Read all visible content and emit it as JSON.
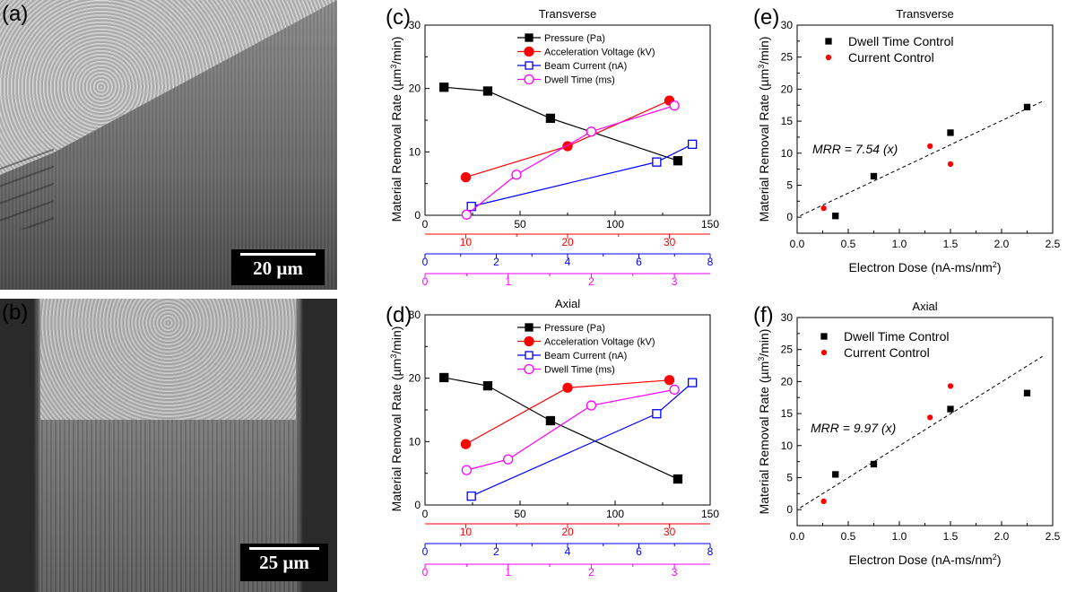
{
  "panels": {
    "a": {
      "label": "(a)",
      "scale_bar": "20 µm"
    },
    "b": {
      "label": "(b)",
      "scale_bar": "25 µm"
    },
    "c": {
      "label": "(c)"
    },
    "d": {
      "label": "(d)"
    },
    "e": {
      "label": "(e)"
    },
    "f": {
      "label": "(f)"
    }
  },
  "colors": {
    "pressure": "#000000",
    "voltage": "#ff0000",
    "current": "#0000ff",
    "dwell": "#ff00ff",
    "dwell_control": "#000000",
    "current_control": "#ff0000"
  },
  "chart_data": [
    {
      "panel": "c",
      "type": "line",
      "title": "Transverse",
      "ylabel": "Material Removal Rate (µm³/min)",
      "ylim": [
        0,
        30
      ],
      "yticks": [
        0,
        10,
        20,
        30
      ],
      "x_axes": [
        {
          "id": "pressure",
          "range": [
            0,
            150
          ],
          "ticks": [
            0,
            50,
            100,
            150
          ],
          "color": "#000000"
        },
        {
          "id": "voltage",
          "range": [
            6,
            34
          ],
          "ticks": [
            10,
            20,
            30
          ],
          "color": "#ff0000"
        },
        {
          "id": "current",
          "range": [
            0,
            8
          ],
          "ticks": [
            0,
            2,
            4,
            6,
            8
          ],
          "color": "#0000ff"
        },
        {
          "id": "dwell",
          "range": [
            0,
            3.43
          ],
          "ticks": [
            0,
            1,
            2,
            3
          ],
          "color": "#ff00ff"
        }
      ],
      "legend": "top-center",
      "series": [
        {
          "name": "Pressure (Pa)",
          "axis": "pressure",
          "marker": "filled-square",
          "x": [
            10,
            33,
            66,
            133
          ],
          "y": [
            20.2,
            19.6,
            15.3,
            8.6
          ]
        },
        {
          "name": "Acceleration Voltage (kV)",
          "axis": "voltage",
          "marker": "filled-circle",
          "x": [
            10,
            20,
            30
          ],
          "y": [
            6.0,
            10.9,
            18.1
          ]
        },
        {
          "name": "Beam Current (nA)",
          "axis": "current",
          "marker": "open-square",
          "x": [
            1.3,
            6.5,
            7.5
          ],
          "y": [
            1.4,
            8.4,
            11.2
          ]
        },
        {
          "name": "Dwell Time (ms)",
          "axis": "dwell",
          "marker": "open-circle",
          "x": [
            0.5,
            1.1,
            2,
            3
          ],
          "y": [
            0.1,
            6.4,
            13.2,
            17.3
          ]
        }
      ]
    },
    {
      "panel": "d",
      "type": "line",
      "title": "Axial",
      "ylabel": "Material Removal Rate (µm³/min)",
      "ylim": [
        0,
        30
      ],
      "yticks": [
        0,
        10,
        20,
        30
      ],
      "x_axes": [
        {
          "id": "pressure",
          "range": [
            0,
            150
          ],
          "ticks": [
            0,
            50,
            100,
            150
          ],
          "color": "#000000"
        },
        {
          "id": "voltage",
          "range": [
            6,
            34
          ],
          "ticks": [
            10,
            20,
            30
          ],
          "color": "#ff0000"
        },
        {
          "id": "current",
          "range": [
            0,
            8
          ],
          "ticks": [
            0,
            2,
            4,
            6,
            8
          ],
          "color": "#0000ff"
        },
        {
          "id": "dwell",
          "range": [
            0,
            3.43
          ],
          "ticks": [
            0,
            1,
            2,
            3
          ],
          "color": "#ff00ff"
        }
      ],
      "legend": "top-center",
      "series": [
        {
          "name": "Pressure (Pa)",
          "axis": "pressure",
          "marker": "filled-square",
          "x": [
            10,
            33,
            66,
            133
          ],
          "y": [
            20.1,
            18.8,
            13.3,
            4.1
          ]
        },
        {
          "name": "Acceleration Voltage (kV)",
          "axis": "voltage",
          "marker": "filled-circle",
          "x": [
            10,
            20,
            30
          ],
          "y": [
            9.6,
            18.5,
            19.7
          ]
        },
        {
          "name": "Beam Current (nA)",
          "axis": "current",
          "marker": "open-square",
          "x": [
            1.3,
            6.5,
            7.5
          ],
          "y": [
            1.4,
            14.4,
            19.3
          ]
        },
        {
          "name": "Dwell Time (ms)",
          "axis": "dwell",
          "marker": "open-circle",
          "x": [
            0.5,
            1,
            2,
            3
          ],
          "y": [
            5.5,
            7.2,
            15.7,
            18.2
          ]
        }
      ]
    },
    {
      "panel": "e",
      "type": "scatter",
      "title": "Transverse",
      "xlabel": "Electron Dose (nA-ms/nm²)",
      "ylabel": "Material Removal Rate (µm³/min)",
      "xlim": [
        0,
        2.5
      ],
      "ylim": [
        -2.5,
        30
      ],
      "xticks": [
        "0.0",
        "0.5",
        "1.0",
        "1.5",
        "2.0",
        "2.5"
      ],
      "yticks": [
        0,
        5,
        10,
        15,
        20,
        25,
        30
      ],
      "legend": "top-left",
      "annotation": "MRR = 7.54 (x)",
      "fit_slope": 7.54,
      "fit_range": [
        0.03,
        2.4
      ],
      "series": [
        {
          "name": "Dwell Time Control",
          "marker": "filled-square",
          "x": [
            0.375,
            0.75,
            1.5,
            2.25
          ],
          "y": [
            0.2,
            6.4,
            13.2,
            17.2
          ]
        },
        {
          "name": "Current Control",
          "marker": "filled-circle",
          "x": [
            0.26,
            1.3,
            1.5
          ],
          "y": [
            1.4,
            11.1,
            8.3
          ]
        }
      ]
    },
    {
      "panel": "f",
      "type": "scatter",
      "title": "Axial",
      "xlabel": "Electron Dose (nA-ms/nm²)",
      "ylabel": "Material Removal Rate (µm³/min)",
      "xlim": [
        0,
        2.5
      ],
      "ylim": [
        -2.5,
        30
      ],
      "xticks": [
        "0.0",
        "0.5",
        "1.0",
        "1.5",
        "2.0",
        "2.5"
      ],
      "yticks": [
        0,
        5,
        10,
        15,
        20,
        25,
        30
      ],
      "legend": "top-left",
      "annotation": "MRR = 9.97 (x)",
      "fit_slope": 9.97,
      "fit_range": [
        0.03,
        2.4
      ],
      "series": [
        {
          "name": "Dwell Time Control",
          "marker": "filled-square",
          "x": [
            0.375,
            0.75,
            1.5,
            2.25
          ],
          "y": [
            5.5,
            7.1,
            15.7,
            18.2
          ]
        },
        {
          "name": "Current Control",
          "marker": "filled-circle",
          "x": [
            0.26,
            1.3,
            1.5
          ],
          "y": [
            1.3,
            14.4,
            19.3
          ]
        }
      ]
    }
  ]
}
